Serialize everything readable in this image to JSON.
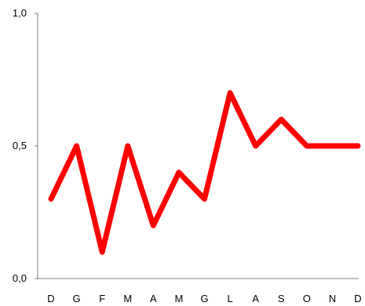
{
  "chart_data": {
    "type": "line",
    "categories": [
      "D",
      "G",
      "F",
      "M",
      "A",
      "M",
      "G",
      "L",
      "A",
      "S",
      "O",
      "N",
      "D"
    ],
    "series": [
      {
        "values": [
          0.3,
          0.5,
          0.1,
          0.5,
          0.2,
          0.4,
          0.3,
          0.7,
          0.5,
          0.6,
          0.5,
          0.5,
          0.5
        ]
      }
    ],
    "yticks": [
      "0,0",
      "0,5",
      "1,0"
    ],
    "ylim": [
      0,
      1
    ],
    "grid": false,
    "legend": "none",
    "title": "",
    "xlabel": "",
    "ylabel": "",
    "colors": {
      "line": "#ff0000",
      "axis": "#7f7f7f"
    }
  }
}
